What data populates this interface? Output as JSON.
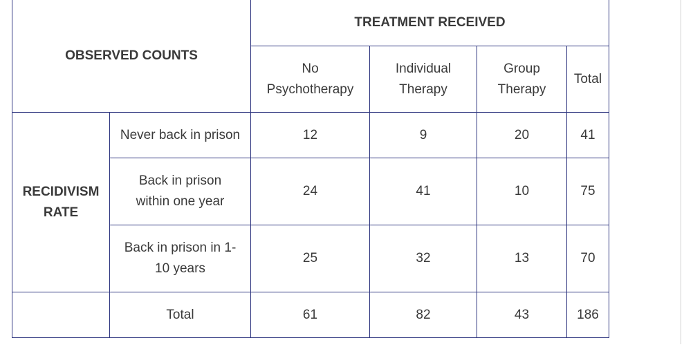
{
  "table": {
    "corner_label": "OBSERVED COUNTS",
    "treatment_header": "TREATMENT RECEIVED",
    "row_group_label": "RECIDIVISM RATE",
    "columns": [
      {
        "label_line1": "No",
        "label_line2": "Psychotherapy"
      },
      {
        "label_line1": "Individual",
        "label_line2": "Therapy"
      },
      {
        "label_line1": "Group",
        "label_line2": "Therapy"
      },
      {
        "label_line1": "Total",
        "label_line2": ""
      }
    ],
    "rows": [
      {
        "label_line1": "Never back in prison",
        "label_line2": "",
        "values": [
          "12",
          "9",
          "20",
          "41"
        ]
      },
      {
        "label_line1": "Back in prison",
        "label_line2": "within one year",
        "values": [
          "24",
          "41",
          "10",
          "75"
        ]
      },
      {
        "label_line1": "Back in prison in 1-",
        "label_line2": "10 years",
        "values": [
          "25",
          "32",
          "13",
          "70"
        ]
      }
    ],
    "total_row": {
      "label": "Total",
      "values": [
        "61",
        "82",
        "43",
        "186"
      ]
    }
  }
}
